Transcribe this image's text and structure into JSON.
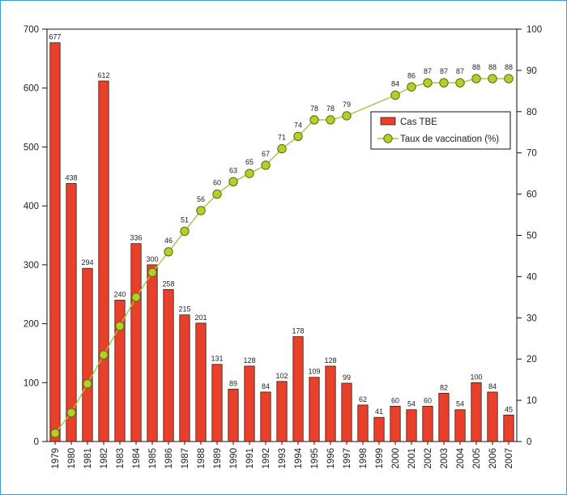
{
  "chart_data": {
    "type": "bar+line",
    "categories": [
      "1979",
      "1980",
      "1981",
      "1982",
      "1983",
      "1984",
      "1985",
      "1986",
      "1987",
      "1988",
      "1989",
      "1990",
      "1991",
      "1992",
      "1993",
      "1994",
      "1995",
      "1996",
      "1997",
      "1998",
      "1999",
      "2000",
      "2001",
      "2002",
      "2003",
      "2004",
      "2005",
      "2006",
      "2007"
    ],
    "series": [
      {
        "name": "Cas TBE",
        "type": "bar",
        "axis": "left",
        "values": [
          677,
          438,
          294,
          612,
          240,
          336,
          300,
          258,
          215,
          201,
          131,
          89,
          128,
          84,
          102,
          178,
          109,
          128,
          99,
          62,
          41,
          60,
          54,
          60,
          82,
          54,
          100,
          84,
          45
        ]
      },
      {
        "name": "Taux de vaccination (%)",
        "type": "line",
        "axis": "right",
        "x": [
          "1979",
          "1980",
          "1981",
          "1982",
          "1983",
          "1984",
          "1985",
          "1986",
          "1987",
          "1988",
          "1989",
          "1990",
          "1991",
          "1992",
          "1993",
          "1994",
          "1995",
          "1996",
          "1997",
          "2000",
          "2001",
          "2002",
          "2003",
          "2004",
          "2005",
          "2006",
          "2007"
        ],
        "values": [
          2,
          7,
          14,
          21,
          28,
          35,
          41,
          46,
          51,
          56,
          60,
          63,
          65,
          67,
          71,
          74,
          78,
          78,
          79,
          84,
          86,
          87,
          87,
          87,
          88,
          88,
          88
        ],
        "labels": [
          "",
          "",
          "",
          "",
          "",
          "",
          "",
          "46",
          "51",
          "56",
          "60",
          "63",
          "65",
          "67",
          "71",
          "74",
          "78",
          "78",
          "79",
          "84",
          "86",
          "87",
          "87",
          "87",
          "88",
          "88",
          "88"
        ]
      }
    ],
    "y_left": {
      "min": 0,
      "max": 700,
      "ticks": [
        "0",
        "100",
        "200",
        "300",
        "400",
        "500",
        "600",
        "700"
      ]
    },
    "y_right": {
      "min": 0,
      "max": 100,
      "ticks": [
        "0",
        "10",
        "20",
        "30",
        "40",
        "50",
        "60",
        "70",
        "80",
        "90",
        "100"
      ]
    },
    "legend": {
      "position": "top-right",
      "entries": [
        "Cas TBE",
        "Taux de vaccination (%)"
      ]
    },
    "grid": false,
    "colors": {
      "bar": "#e8402a",
      "bar_edge": "#3a1a14",
      "line": "#a9c23f",
      "marker": "#b5cf2a",
      "marker_edge": "#5a6a10",
      "frame": "#3aa0d8"
    }
  }
}
